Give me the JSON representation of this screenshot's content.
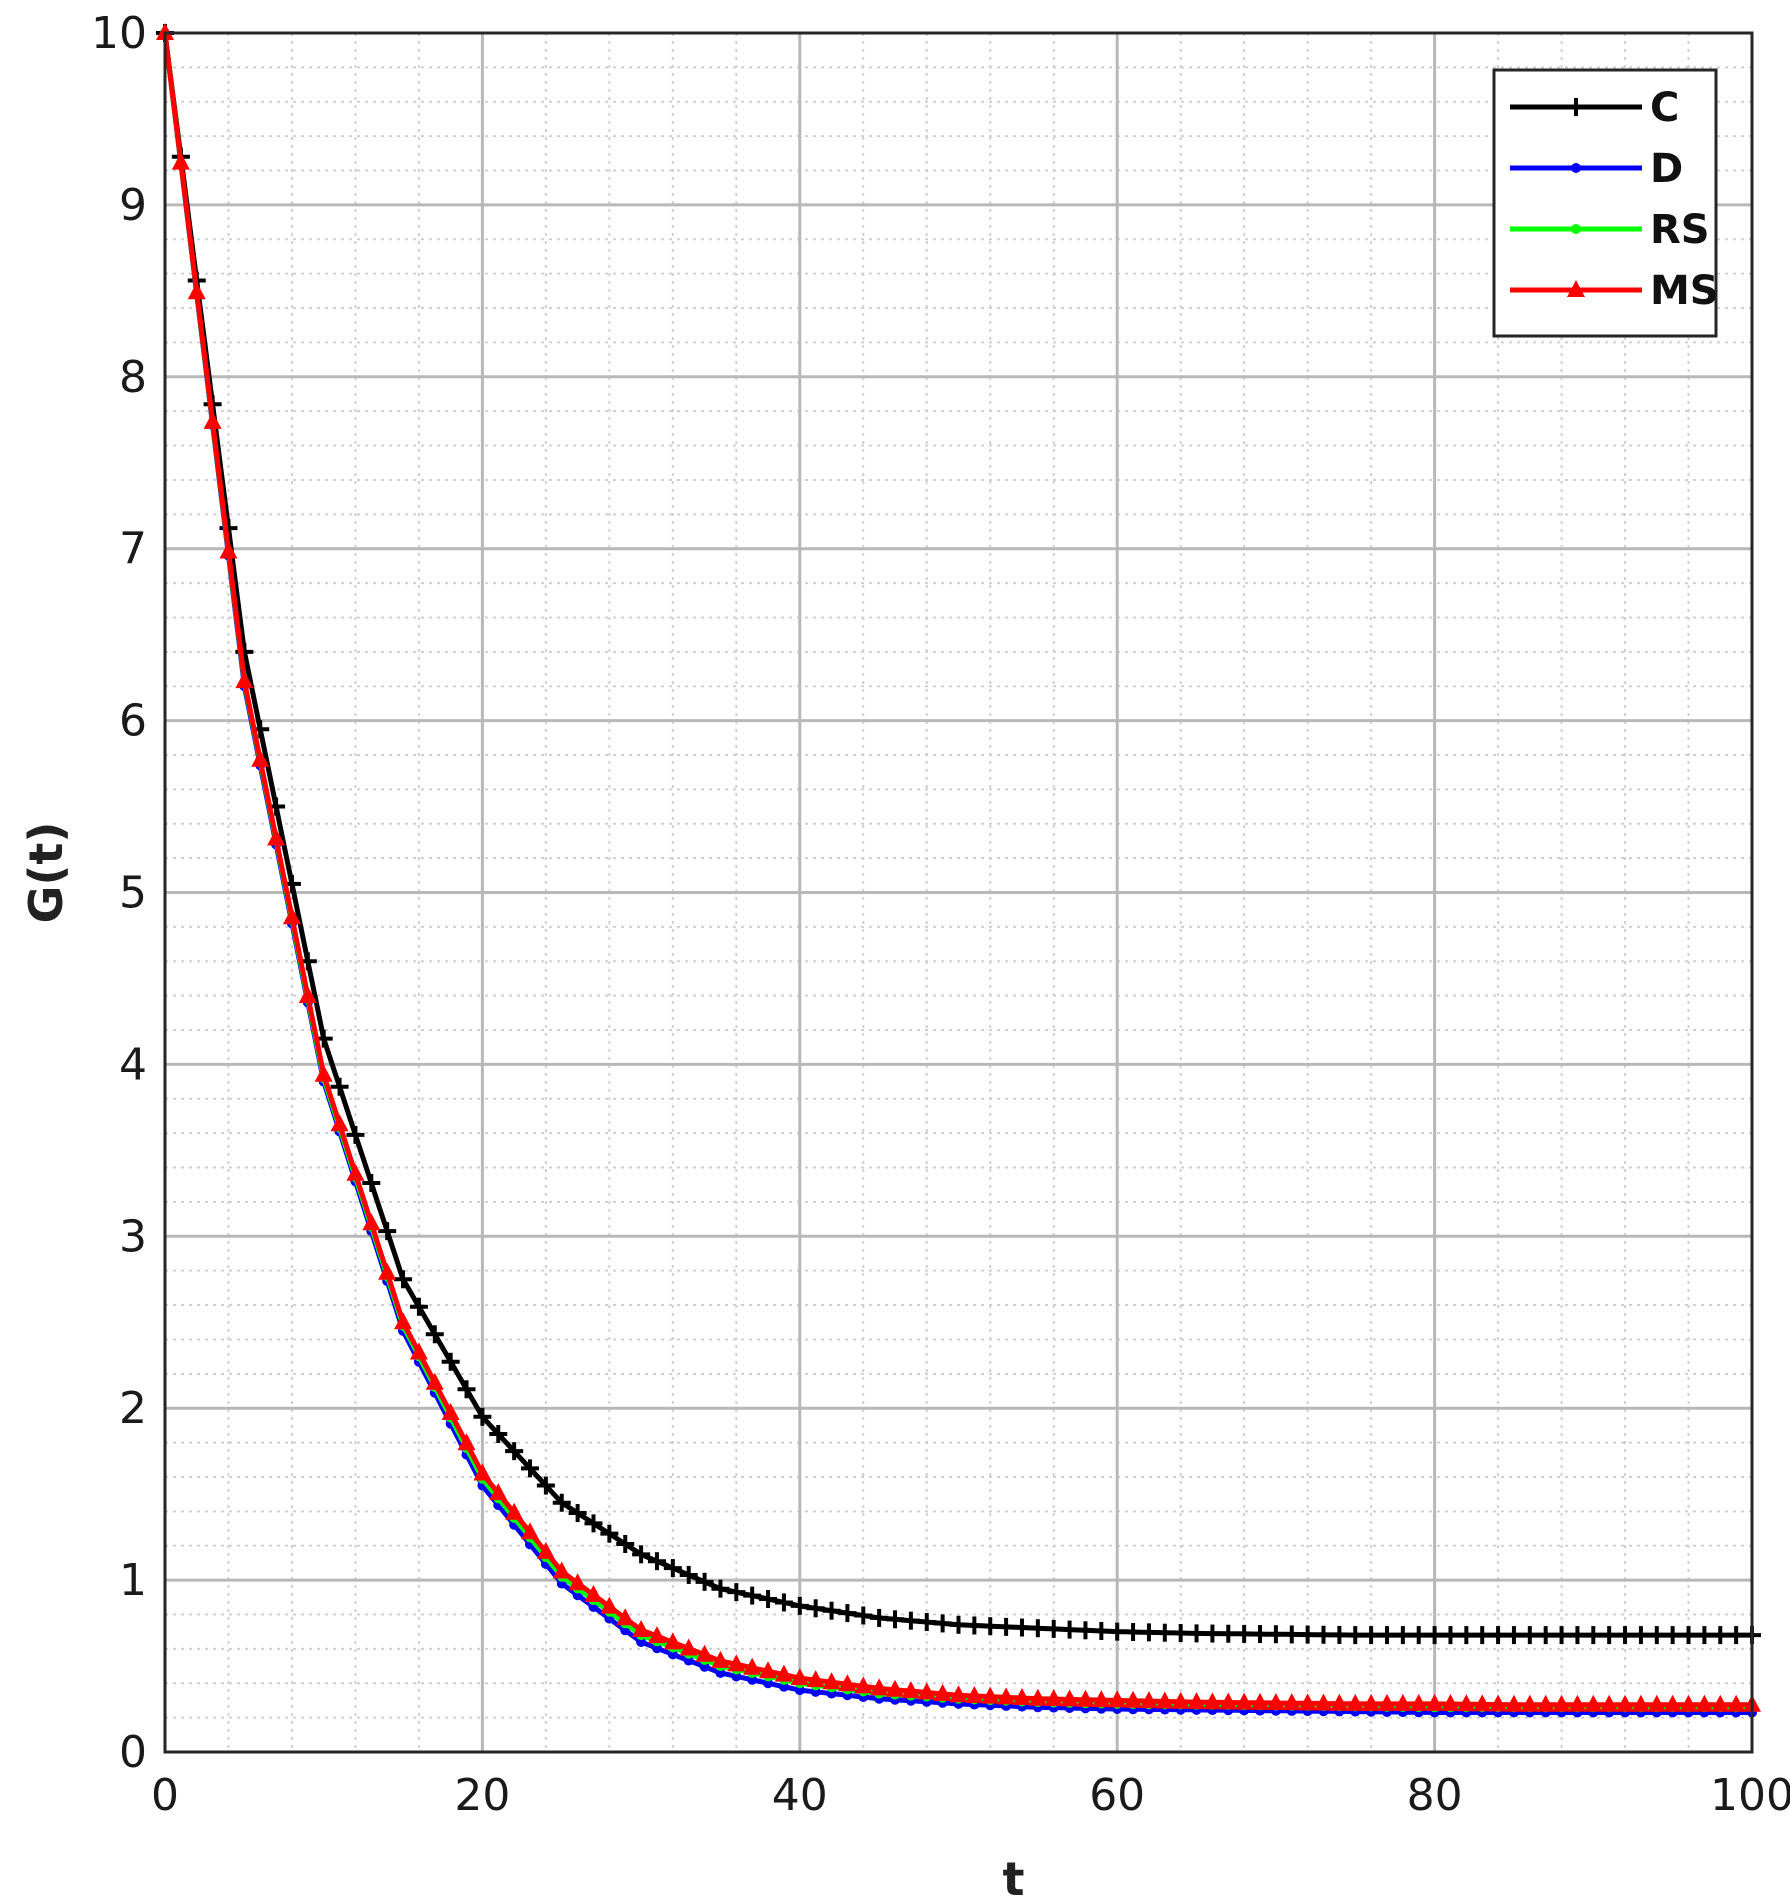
{
  "chart_data": {
    "type": "line",
    "title": "",
    "xlabel": "t",
    "ylabel": "G(t)",
    "xlim": [
      0,
      100
    ],
    "ylim": [
      0,
      10
    ],
    "xticks": [
      0,
      20,
      40,
      60,
      80,
      100
    ],
    "yticks": [
      0,
      1,
      2,
      3,
      4,
      5,
      6,
      7,
      8,
      9,
      10
    ],
    "grid": true,
    "minor_grid": true,
    "legend_position": "top-right",
    "marker_step": 1,
    "series": [
      {
        "name": "C",
        "color": "#000000",
        "marker": "plus",
        "x": [
          0,
          5,
          10,
          15,
          20,
          25,
          30,
          35,
          40,
          45,
          50,
          55,
          60,
          65,
          70,
          75,
          80,
          85,
          90,
          95,
          100
        ],
        "y": [
          10,
          6.4,
          4.15,
          2.75,
          1.95,
          1.45,
          1.15,
          0.95,
          0.85,
          0.78,
          0.74,
          0.72,
          0.7,
          0.69,
          0.685,
          0.68,
          0.68,
          0.68,
          0.68,
          0.68,
          0.68
        ]
      },
      {
        "name": "D",
        "color": "#0000ff",
        "marker": "dot",
        "x": [
          0,
          5,
          10,
          15,
          20,
          25,
          30,
          35,
          40,
          45,
          50,
          55,
          60,
          65,
          70,
          75,
          80,
          85,
          90,
          95,
          100
        ],
        "y": [
          10,
          6.2,
          3.9,
          2.45,
          1.55,
          0.98,
          0.64,
          0.46,
          0.36,
          0.31,
          0.28,
          0.26,
          0.25,
          0.245,
          0.24,
          0.235,
          0.23,
          0.23,
          0.23,
          0.23,
          0.23
        ]
      },
      {
        "name": "RS",
        "color": "#00ff00",
        "marker": "dot",
        "x": [
          0,
          5,
          10,
          15,
          20,
          25,
          30,
          35,
          40,
          45,
          50,
          55,
          60,
          65,
          70,
          75,
          80,
          85,
          90,
          95,
          100
        ],
        "y": [
          10,
          6.22,
          3.92,
          2.48,
          1.59,
          1.02,
          0.68,
          0.5,
          0.4,
          0.34,
          0.31,
          0.29,
          0.28,
          0.275,
          0.27,
          0.265,
          0.26,
          0.26,
          0.26,
          0.26,
          0.26
        ]
      },
      {
        "name": "MS",
        "color": "#ff0000",
        "marker": "triangle",
        "x": [
          0,
          5,
          10,
          15,
          20,
          25,
          30,
          35,
          40,
          45,
          50,
          55,
          60,
          65,
          70,
          75,
          80,
          85,
          90,
          95,
          100
        ],
        "y": [
          10,
          6.23,
          3.94,
          2.5,
          1.62,
          1.05,
          0.71,
          0.53,
          0.43,
          0.37,
          0.33,
          0.31,
          0.3,
          0.29,
          0.285,
          0.28,
          0.28,
          0.275,
          0.275,
          0.275,
          0.275
        ]
      }
    ]
  }
}
